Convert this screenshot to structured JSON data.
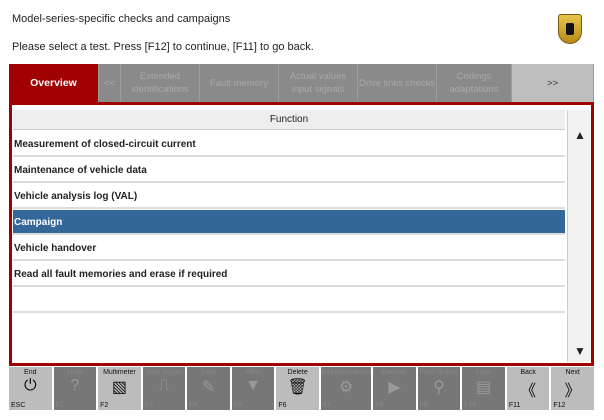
{
  "header": {
    "title": "Model-series-specific checks and campaigns",
    "instruction": "Please select a test. Press [F12] to continue, [F11] to go back."
  },
  "tabs": [
    {
      "label": "Overview",
      "active": true
    },
    {
      "label": "<<"
    },
    {
      "label": "Extended identifications"
    },
    {
      "label": "Fault memory"
    },
    {
      "label": "Actual values input signals"
    },
    {
      "label": "Drive links checks"
    },
    {
      "label": "Codings adaptations"
    },
    {
      "label": ">>"
    }
  ],
  "table": {
    "column": "Function",
    "rows": [
      {
        "label": "Measurement of closed-circuit current"
      },
      {
        "label": "Maintenance of vehicle data"
      },
      {
        "label": "Vehicle analysis log (VAL)"
      },
      {
        "label": "Campaign",
        "selected": true
      },
      {
        "label": "Vehicle handover"
      },
      {
        "label": "Read all fault memories and erase if required"
      },
      {
        "label": ""
      }
    ]
  },
  "scroll": {
    "up": "▲",
    "down": "▼"
  },
  "footer": [
    {
      "label": "End",
      "key": "ESC",
      "icon": "power-icon",
      "glyph": "⏻",
      "enabled": true
    },
    {
      "label": "Help",
      "key": "F1",
      "icon": "help-icon",
      "glyph": "?"
    },
    {
      "label": "Multimeter",
      "key": "F2",
      "icon": "multimeter-icon",
      "glyph": "▧",
      "enabled": true
    },
    {
      "label": "Data logger",
      "key": "F3",
      "icon": "data-logger-icon",
      "glyph": "⎍"
    },
    {
      "label": "Save",
      "key": "F4",
      "icon": "save-icon",
      "glyph": "✎"
    },
    {
      "label": "Filter",
      "key": "F5",
      "icon": "filter-icon",
      "glyph": "▼"
    },
    {
      "label": "Delete",
      "key": "F6",
      "icon": "trash-icon",
      "glyph": "🗑",
      "enabled": true
    },
    {
      "label": "Additional menu",
      "key": "F7",
      "icon": "additional-menu-icon",
      "glyph": "⚙"
    },
    {
      "label": "Execute",
      "key": "F8",
      "icon": "execute-icon",
      "glyph": "▶"
    },
    {
      "label": "Fault finding",
      "key": "F9",
      "icon": "fault-finding-icon",
      "glyph": "⚲"
    },
    {
      "label": "Logs",
      "key": "F10",
      "icon": "logs-icon",
      "glyph": "▤"
    },
    {
      "label": "Back",
      "key": "F11",
      "icon": "back-icon",
      "glyph": "《",
      "enabled": true
    },
    {
      "label": "Next",
      "key": "F12",
      "icon": "next-icon",
      "glyph": "》",
      "enabled": true
    }
  ],
  "colors": {
    "accent": "#a00000",
    "selected": "#336699"
  }
}
